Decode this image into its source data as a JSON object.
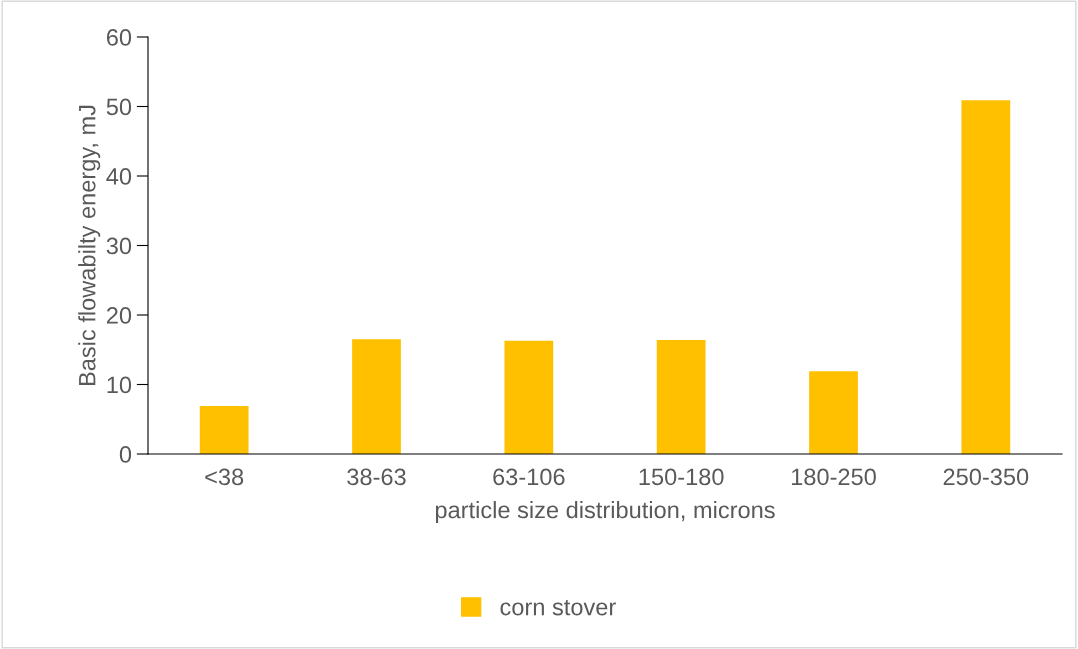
{
  "chart_data": {
    "type": "bar",
    "xlabel": "particle size distribution, microns",
    "ylabel": "Basic flowabilty energy, mJ",
    "categories": [
      "<38",
      "38-63",
      "63-106",
      "150-180",
      "180-250",
      "250-350"
    ],
    "series": [
      {
        "name": "corn stover",
        "color": "#ffc000",
        "values": [
          6.9,
          16.5,
          16.3,
          16.4,
          11.9,
          50.9
        ]
      }
    ],
    "ylim": [
      0,
      60
    ],
    "yticks": [
      0,
      10,
      20,
      30,
      40,
      50,
      60
    ],
    "grid": false,
    "legend": "bottom"
  }
}
